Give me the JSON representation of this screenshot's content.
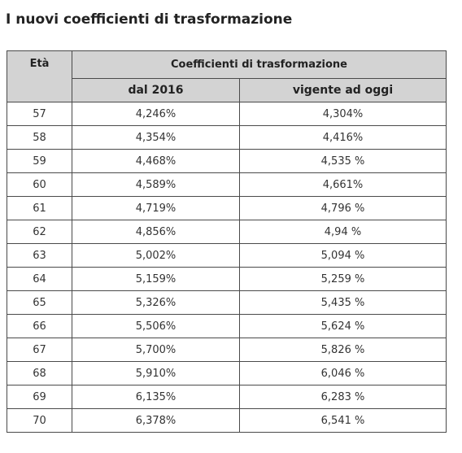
{
  "page": {
    "title": "I nuovi coefficienti di trasformazione"
  },
  "table": {
    "headers": {
      "eta": "Età",
      "group": "Coefficienti di trasformazione",
      "dal_2016": "dal 2016",
      "vigente": "vigente ad oggi"
    },
    "rows": [
      {
        "eta": "57",
        "dal_2016": "4,246%",
        "vigente": "4,304%"
      },
      {
        "eta": "58",
        "dal_2016": "4,354%",
        "vigente": "4,416%"
      },
      {
        "eta": "59",
        "dal_2016": "4,468%",
        "vigente": "4,535 %"
      },
      {
        "eta": "60",
        "dal_2016": "4,589%",
        "vigente": "4,661%"
      },
      {
        "eta": "61",
        "dal_2016": "4,719%",
        "vigente": "4,796 %"
      },
      {
        "eta": "62",
        "dal_2016": "4,856%",
        "vigente": "4,94 %"
      },
      {
        "eta": "63",
        "dal_2016": "5,002%",
        "vigente": "5,094 %"
      },
      {
        "eta": "64",
        "dal_2016": "5,159%",
        "vigente": "5,259 %"
      },
      {
        "eta": "65",
        "dal_2016": "5,326%",
        "vigente": "5,435 %"
      },
      {
        "eta": "66",
        "dal_2016": "5,506%",
        "vigente": "5,624 %"
      },
      {
        "eta": "67",
        "dal_2016": "5,700%",
        "vigente": "5,826 %"
      },
      {
        "eta": "68",
        "dal_2016": "5,910%",
        "vigente": "6,046 %"
      },
      {
        "eta": "69",
        "dal_2016": "6,135%",
        "vigente": "6,283 %"
      },
      {
        "eta": "70",
        "dal_2016": "6,378%",
        "vigente": "6,541 %"
      }
    ]
  }
}
